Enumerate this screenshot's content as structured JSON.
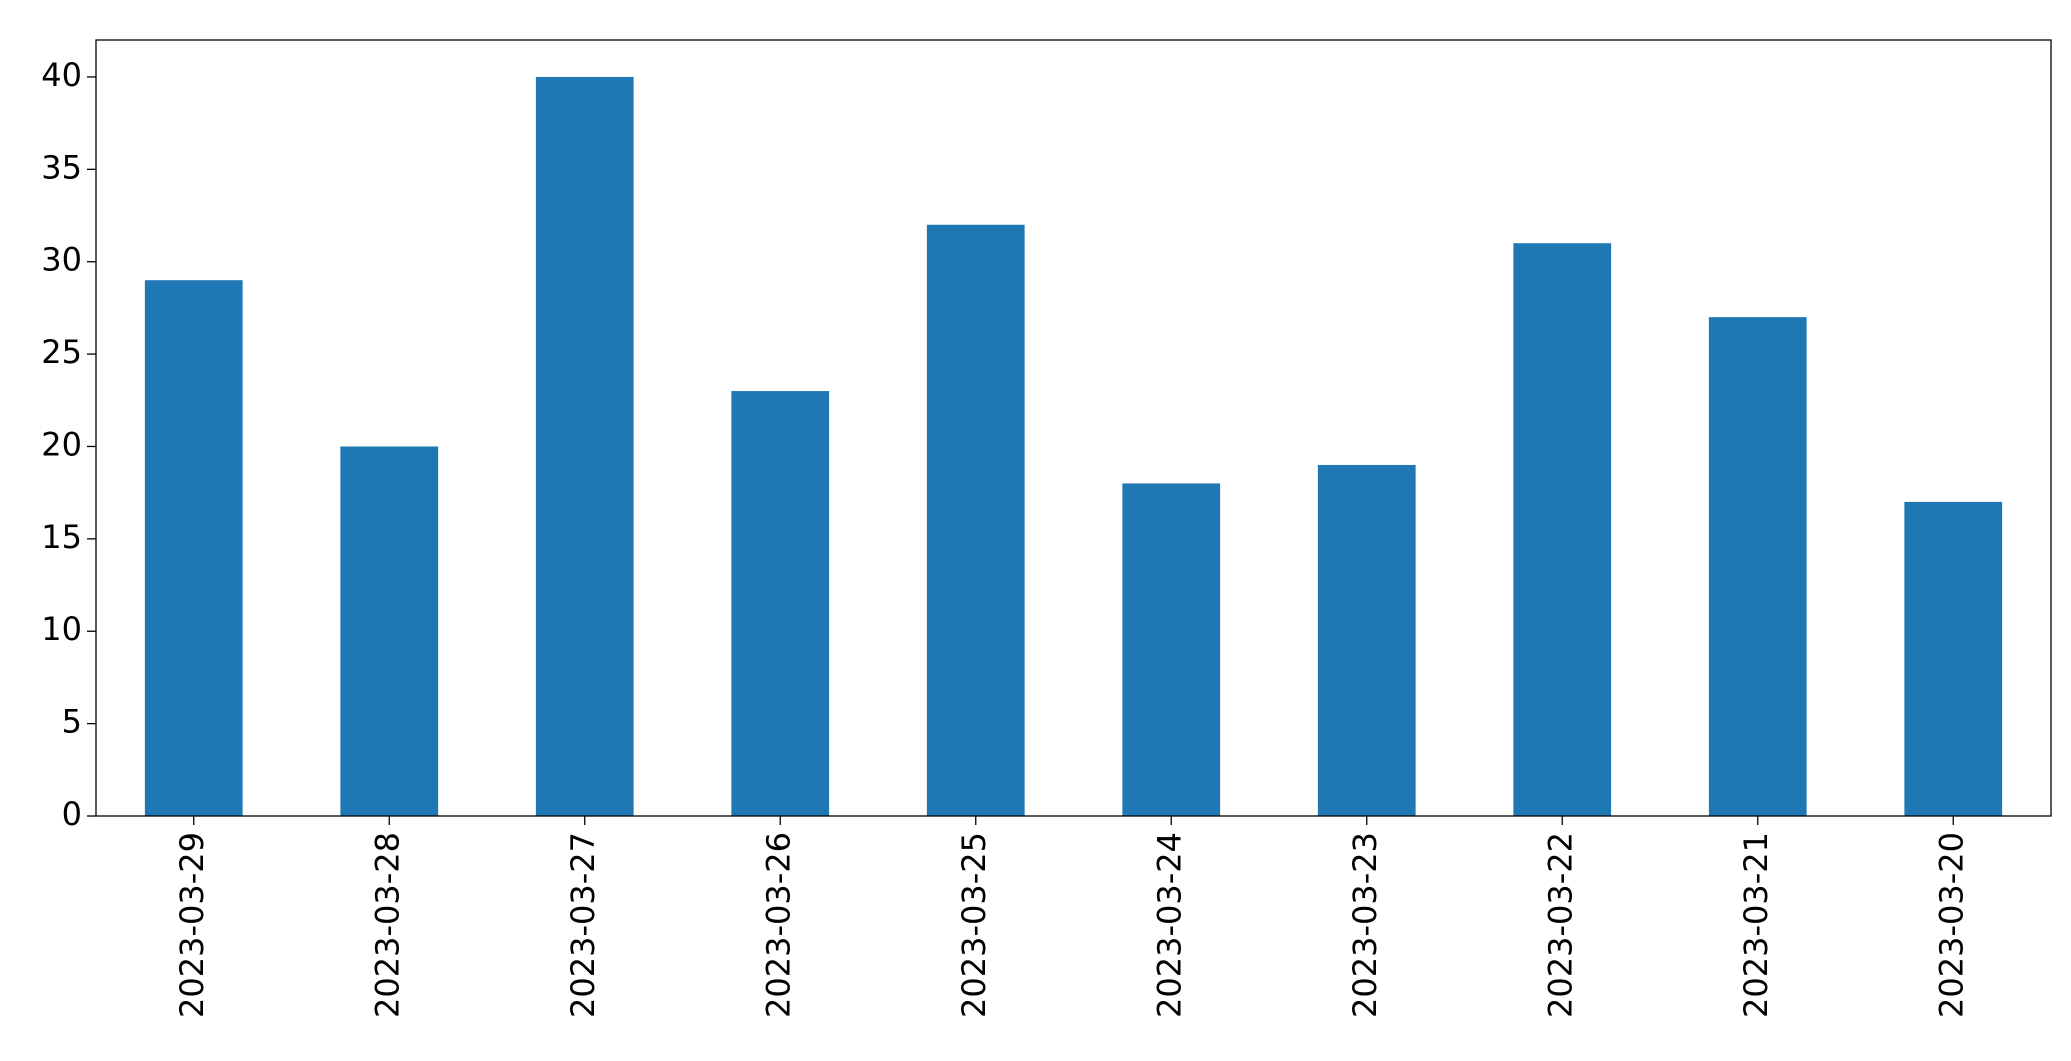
{
  "chart_data": {
    "type": "bar",
    "categories": [
      "2023-03-29",
      "2023-03-28",
      "2023-03-27",
      "2023-03-26",
      "2023-03-25",
      "2023-03-24",
      "2023-03-23",
      "2023-03-22",
      "2023-03-21",
      "2023-03-20"
    ],
    "values": [
      29,
      20,
      40,
      23,
      32,
      18,
      19,
      31,
      27,
      17
    ],
    "color": "#1f77b4",
    "ylim": [
      0,
      42
    ],
    "yticks": [
      0,
      5,
      10,
      15,
      20,
      25,
      30,
      35,
      40
    ]
  }
}
